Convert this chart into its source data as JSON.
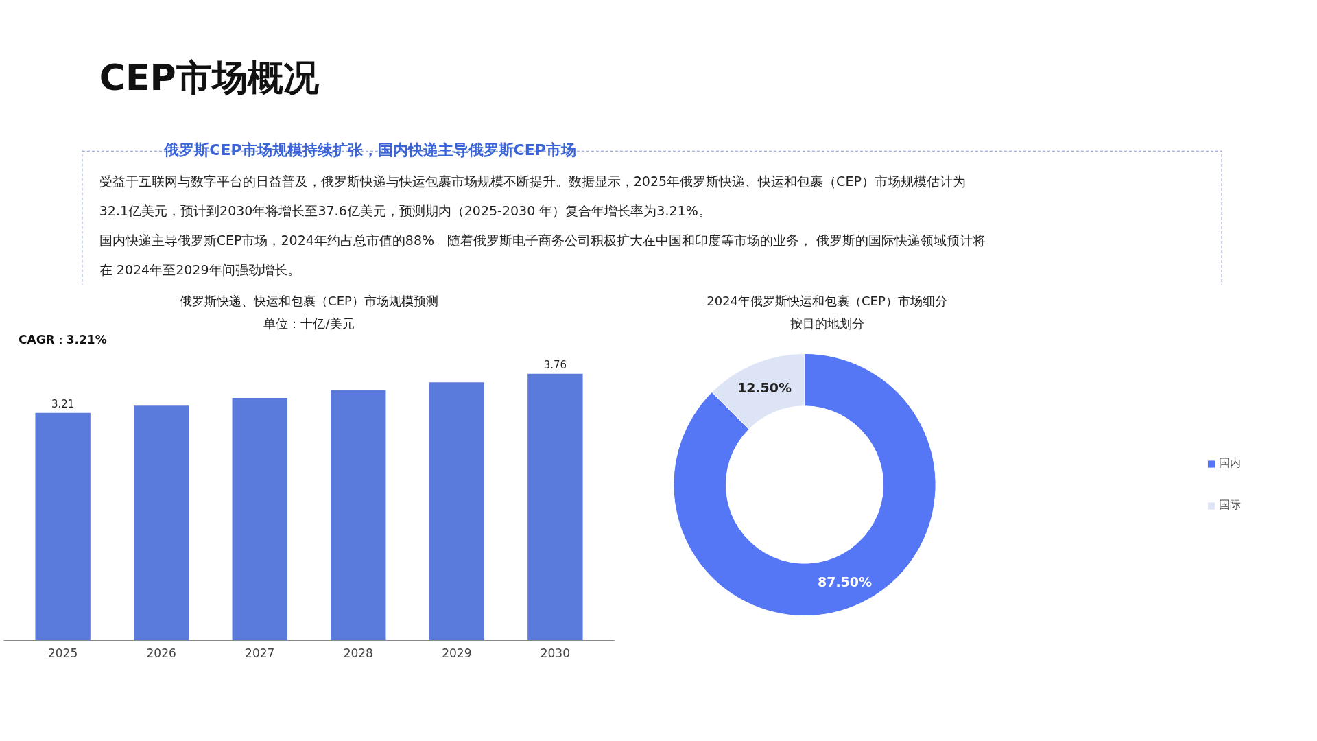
{
  "chart_data": [
    {
      "type": "other",
      "title": "CEP市场概况",
      "subtitle": "俄罗斯CEP市场规模持续扩张，国内快递主导俄罗斯CEP市场",
      "annotations": [
        "受益于互联网与数字平台的日益普及，俄罗斯快递与快运包裹市场规模不断提升。数据显示，2025年俄罗斯快递、快运和包裹（CEP）市场规模估计为",
        "32.1亿美元，预计到2030年将增长至37.6亿美元，预测期内（2025-2030 年）复合年增长率为3.21%。",
        "国内快递主导俄罗斯CEP市场，2024年约占总市值的88%。随着俄罗斯电子商务公司积极扩大在中国和印度等市场的业务， 俄罗斯的国际快递领域预计将",
        "在 2024年至2029年间强劲增长。"
      ]
    },
    {
      "type": "bar",
      "title": "俄罗斯快递、快运和包裹（CEP）市场规模预测",
      "subtitle": "单位：十亿/美元",
      "categories": [
        "2025",
        "2026",
        "2027",
        "2028",
        "2029",
        "2030"
      ],
      "values": [
        3.21,
        3.31,
        3.42,
        3.53,
        3.64,
        3.76
      ],
      "value_labels": [
        "3.21",
        null,
        null,
        null,
        null,
        "3.76"
      ],
      "color": "#5a7bdc",
      "tick_labels": "x",
      "grid": false,
      "annotations": [
        "CAGR：3.21%"
      ]
    },
    {
      "type": "donut",
      "title": "2024年俄罗斯快运和包裹（CEP）市场细分",
      "subtitle": "按目的地划分",
      "categories": [
        "国内",
        "国际"
      ],
      "values": [
        87.5,
        12.5
      ],
      "colors": [
        "#5677f5",
        "#dde4f6"
      ],
      "value_labels": [
        "87.50%",
        "12.50%"
      ],
      "legend": "right"
    }
  ]
}
